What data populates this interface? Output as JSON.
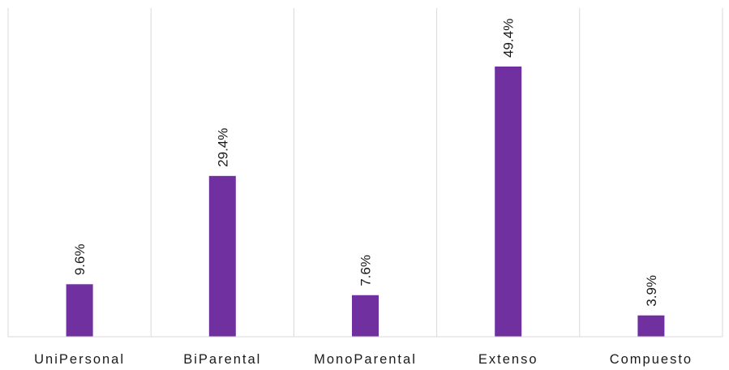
{
  "chart_data": {
    "type": "bar",
    "categories": [
      "UniPersonal",
      "BiParental",
      "MonoParental",
      "Extenso",
      "Compuesto"
    ],
    "values": [
      9.6,
      29.4,
      7.6,
      49.4,
      3.9
    ],
    "value_labels": [
      "9.6%",
      "29.4%",
      "7.6%",
      "49.4%",
      "3.9%"
    ],
    "ylim": [
      0,
      49.4
    ],
    "bar_color": "#7030a0",
    "separator_color": "#d9d9d9",
    "axis_color": "#d9d9d9",
    "grid": false,
    "data_label_orientation": "vertical"
  }
}
